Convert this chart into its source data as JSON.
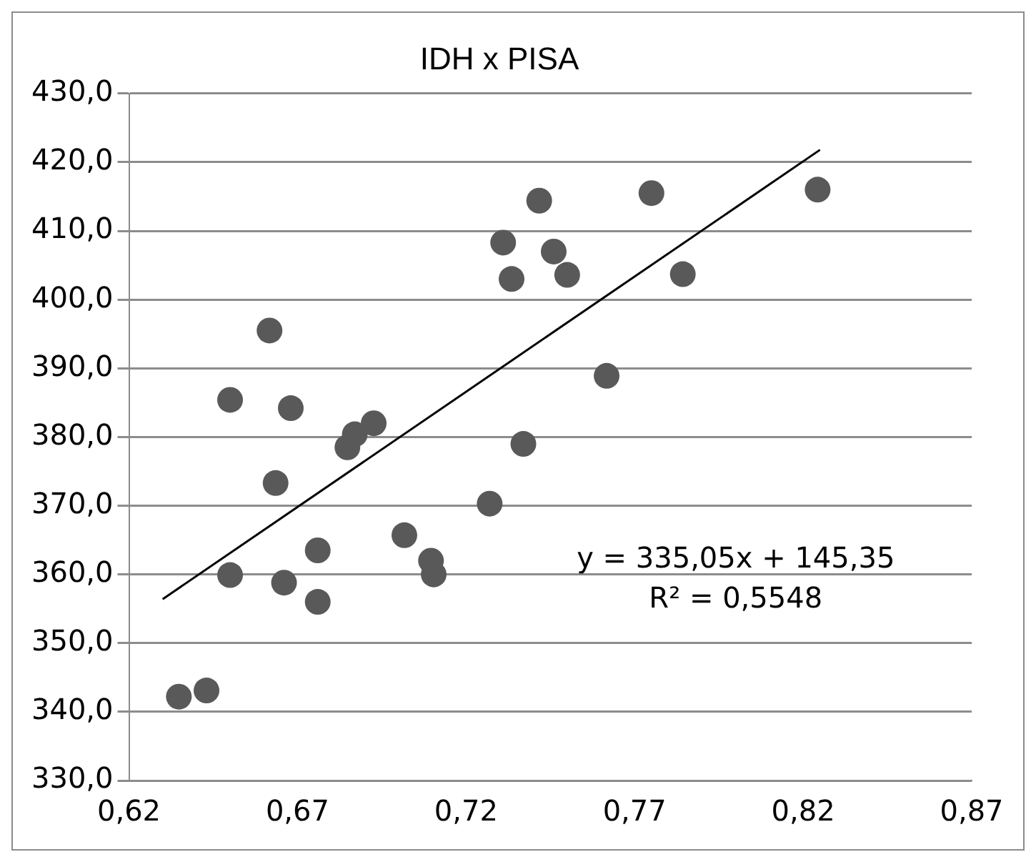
{
  "chart_data": {
    "type": "scatter",
    "title": "IDH x PISA",
    "x": [
      0.6348,
      0.643,
      0.65,
      0.65,
      0.6617,
      0.6635,
      0.666,
      0.668,
      0.676,
      0.676,
      0.6848,
      0.687,
      0.6926,
      0.7017,
      0.7096,
      0.7104,
      0.727,
      0.731,
      0.7335,
      0.737,
      0.7417,
      0.746,
      0.75,
      0.7617,
      0.775,
      0.7843,
      0.8243
    ],
    "series": [
      {
        "color": "#595959",
        "marker": "circle",
        "values": [
          342.2,
          343.1,
          359.9,
          385.4,
          395.5,
          373.3,
          358.8,
          384.2,
          356,
          363.5,
          378.5,
          380.4,
          382,
          365.7,
          362,
          360,
          370.3,
          408.3,
          403,
          379,
          414.4,
          407,
          403.6,
          388.9,
          415.5,
          403.7,
          416
        ]
      },
      {
        "type": "line",
        "color": "#000000",
        "marker": "none",
        "x": [
          0.63,
          0.825
        ],
        "values": [
          356.4,
          421.8
        ]
      }
    ],
    "xlim": [
      0.62,
      0.87
    ],
    "xticks": [
      {
        "value": 0.62,
        "label": "0,62"
      },
      {
        "value": 0.67,
        "label": "0,67"
      },
      {
        "value": 0.72,
        "label": "0,72"
      },
      {
        "value": 0.77,
        "label": "0,77"
      },
      {
        "value": 0.82,
        "label": "0,82"
      },
      {
        "value": 0.87,
        "label": "0,87"
      }
    ],
    "ylim": [
      330,
      430
    ],
    "yticks": [
      {
        "value": 330,
        "label": "330,0"
      },
      {
        "value": 340,
        "label": "340,0"
      },
      {
        "value": 350,
        "label": "350,0"
      },
      {
        "value": 360,
        "label": "360,0"
      },
      {
        "value": 370,
        "label": "370,0"
      },
      {
        "value": 380,
        "label": "380,0"
      },
      {
        "value": 390,
        "label": "390,0"
      },
      {
        "value": 400,
        "label": "400,0"
      },
      {
        "value": 410,
        "label": "410,0"
      },
      {
        "value": 420,
        "label": "420,0"
      },
      {
        "value": 430,
        "label": "430,0"
      }
    ],
    "grid": "y",
    "legend": false,
    "annotations": [
      "y = 335,05x + 145,35",
      "R² = 0,5548"
    ]
  }
}
